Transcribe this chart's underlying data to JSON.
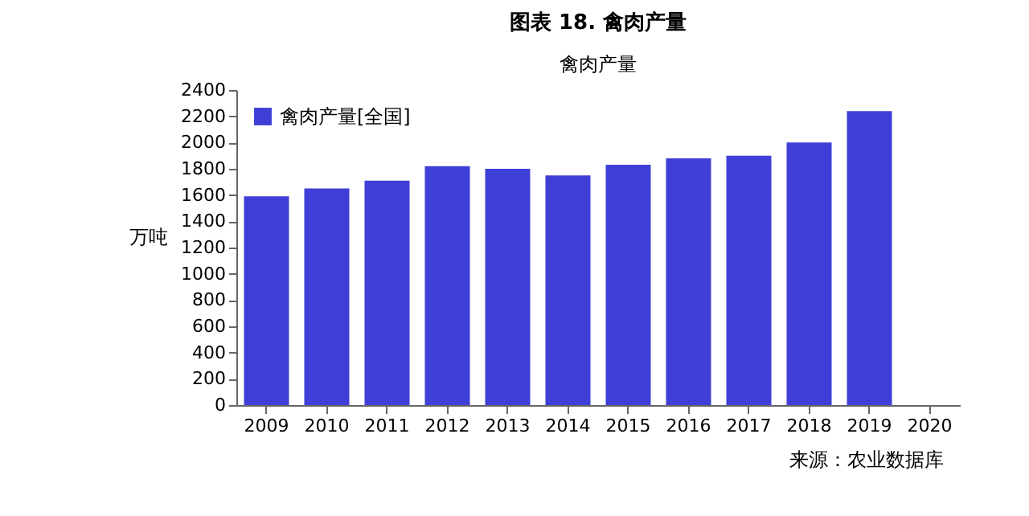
{
  "chart_data": {
    "type": "bar",
    "title": "图表 18. 禽肉产量",
    "subtitle": "禽肉产量",
    "ylabel": "万吨",
    "categories": [
      "2009",
      "2010",
      "2011",
      "2012",
      "2013",
      "2014",
      "2015",
      "2016",
      "2017",
      "2018",
      "2019",
      "2020"
    ],
    "series": [
      {
        "name": "禽肉产量[全国]",
        "color": "#3f3fd8",
        "values": [
          1590,
          1650,
          1710,
          1820,
          1800,
          1750,
          1830,
          1880,
          1900,
          2000,
          2240,
          null
        ]
      }
    ],
    "ylim": [
      0,
      2400
    ],
    "yticks": [
      0,
      200,
      400,
      600,
      800,
      1000,
      1200,
      1400,
      1600,
      1800,
      2000,
      2200,
      2400
    ],
    "grid": false,
    "legend": "top left",
    "annotations": [
      "来源：农业数据库"
    ]
  }
}
